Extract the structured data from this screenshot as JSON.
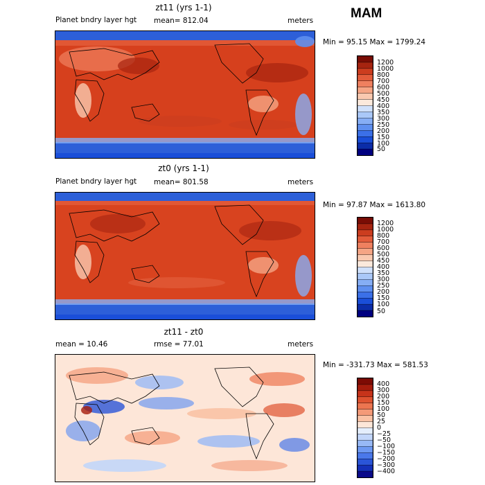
{
  "season": "MAM",
  "colorbar_colors": [
    "#000080",
    "#0b2ca8",
    "#1a4ed8",
    "#3b70e8",
    "#5e8ff0",
    "#86aef5",
    "#aac8f8",
    "#cfe0fb",
    "#fbe9dc",
    "#f9c9b0",
    "#f5a585",
    "#ef805f",
    "#e35c3b",
    "#cc3d1f",
    "#a62410",
    "#7a0d05"
  ],
  "diff_colors": [
    "#0a0a8a",
    "#1430b8",
    "#2a55d8",
    "#4a78ea",
    "#6e99f2",
    "#98b9f6",
    "#c2d6fa",
    "#e4eefc",
    "#fde6d8",
    "#fac2a5",
    "#f49a78",
    "#ec7550",
    "#de5230",
    "#c7331a",
    "#a51c0c",
    "#7d0b04"
  ],
  "chart_data": [
    {
      "type": "heatmap",
      "title": "zt11 (yrs 1-1)",
      "variable": "Planet bndry layer hgt",
      "mean_label": "mean= 812.04",
      "units": "meters",
      "minmax_label": "Min =  95.15 Max = 1799.24",
      "min": 95.15,
      "max": 1799.24,
      "mean": 812.04,
      "colorbar_levels": [
        "1200",
        "1000",
        "800",
        "700",
        "600",
        "500",
        "450",
        "400",
        "350",
        "300",
        "250",
        "200",
        "150",
        "100",
        "50"
      ]
    },
    {
      "type": "heatmap",
      "title": "zt0 (yrs 1-1)",
      "variable": "Planet bndry layer hgt",
      "mean_label": "mean= 801.58",
      "units": "meters",
      "minmax_label": "Min =  97.87 Max = 1613.80",
      "min": 97.87,
      "max": 1613.8,
      "mean": 801.58,
      "colorbar_levels": [
        "1200",
        "1000",
        "800",
        "700",
        "600",
        "500",
        "450",
        "400",
        "350",
        "300",
        "250",
        "200",
        "150",
        "100",
        "50"
      ]
    },
    {
      "type": "heatmap",
      "title": "zt11 - zt0",
      "mean_label": "mean =   10.46",
      "rmse_label": "rmse =   77.01",
      "units": "meters",
      "minmax_label": "Min = -331.73 Max = 581.53",
      "min": -331.73,
      "max": 581.53,
      "mean": 10.46,
      "rmse": 77.01,
      "colorbar_levels": [
        "400",
        "300",
        "200",
        "150",
        "100",
        "50",
        "25",
        "0",
        "−25",
        "−50",
        "−100",
        "−150",
        "−200",
        "−300",
        "−400"
      ]
    }
  ]
}
